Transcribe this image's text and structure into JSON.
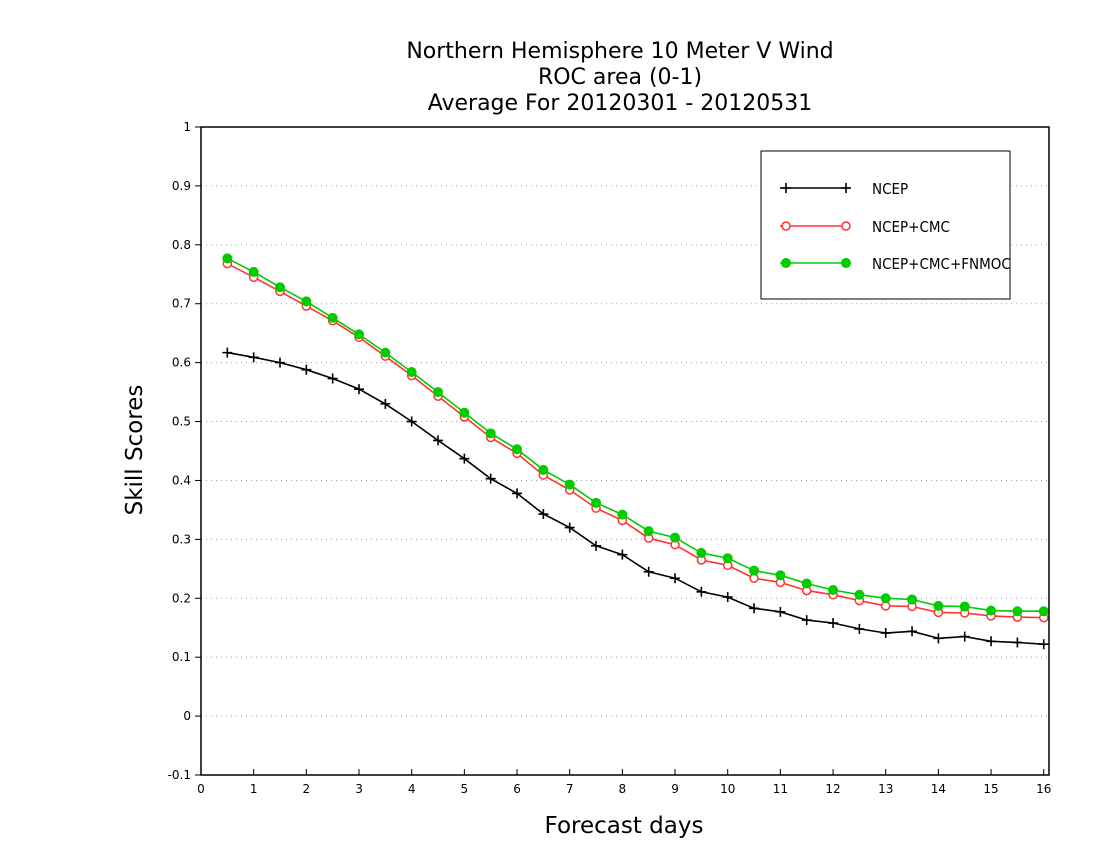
{
  "chart_data": {
    "type": "line",
    "title": [
      "Northern Hemisphere 10 Meter V Wind",
      "ROC area (0-1)",
      "Average For 20120301 - 20120531"
    ],
    "xlabel": "Forecast days",
    "ylabel": "Skill Scores",
    "xlim": [
      0,
      16.1
    ],
    "ylim": [
      -0.1,
      1
    ],
    "xticks": [
      "0",
      "1",
      "2",
      "3",
      "4",
      "5",
      "6",
      "7",
      "8",
      "9",
      "10",
      "11",
      "12",
      "13",
      "14",
      "15",
      "16"
    ],
    "yticks": [
      "-0.1",
      "0",
      "0.1",
      "0.2",
      "0.3",
      "0.4",
      "0.5",
      "0.6",
      "0.7",
      "0.8",
      "0.9",
      "1"
    ],
    "grid": true,
    "legend_position": "top-right",
    "x": [
      0.5,
      1,
      1.5,
      2,
      2.5,
      3,
      3.5,
      4,
      4.5,
      5,
      5.5,
      6,
      6.5,
      7,
      7.5,
      8,
      8.5,
      9,
      9.5,
      10,
      10.5,
      11,
      11.5,
      12,
      12.5,
      13,
      13.5,
      14,
      14.5,
      15,
      15.5,
      16
    ],
    "series": [
      {
        "name": "NCEP",
        "color": "#000000",
        "marker": "plus",
        "values": [
          0.617,
          0.609,
          0.6,
          0.588,
          0.573,
          0.555,
          0.53,
          0.5,
          0.468,
          0.437,
          0.403,
          0.378,
          0.343,
          0.32,
          0.289,
          0.274,
          0.245,
          0.234,
          0.211,
          0.202,
          0.183,
          0.177,
          0.163,
          0.158,
          0.148,
          0.141,
          0.144,
          0.132,
          0.135,
          0.127,
          0.125,
          0.122
        ]
      },
      {
        "name": "NCEP+CMC",
        "color": "#ff3333",
        "marker": "open-circle",
        "values": [
          0.768,
          0.745,
          0.721,
          0.696,
          0.671,
          0.643,
          0.611,
          0.578,
          0.543,
          0.508,
          0.473,
          0.446,
          0.409,
          0.384,
          0.353,
          0.332,
          0.302,
          0.291,
          0.265,
          0.256,
          0.234,
          0.227,
          0.213,
          0.206,
          0.196,
          0.187,
          0.186,
          0.176,
          0.175,
          0.17,
          0.168,
          0.167
        ]
      },
      {
        "name": "NCEP+CMC+FNMOC",
        "color": "#00cc00",
        "marker": "filled-circle",
        "values": [
          0.777,
          0.754,
          0.728,
          0.704,
          0.676,
          0.648,
          0.617,
          0.584,
          0.55,
          0.515,
          0.48,
          0.453,
          0.418,
          0.393,
          0.362,
          0.342,
          0.314,
          0.303,
          0.277,
          0.268,
          0.247,
          0.239,
          0.225,
          0.214,
          0.206,
          0.2,
          0.198,
          0.187,
          0.186,
          0.179,
          0.178,
          0.178
        ]
      }
    ]
  }
}
